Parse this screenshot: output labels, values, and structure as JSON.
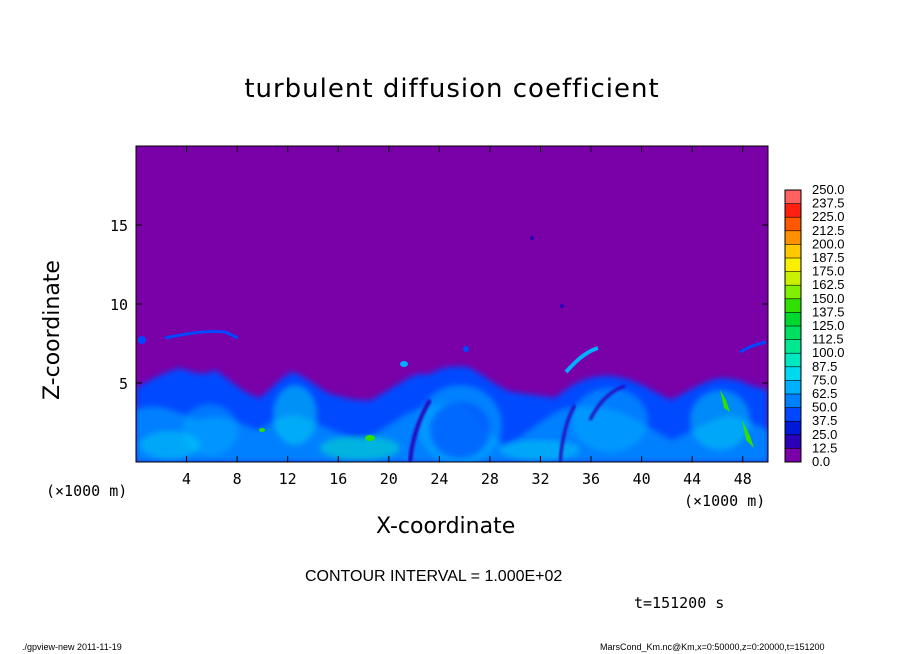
{
  "chart_data": {
    "type": "heatmap",
    "title": "turbulent diffusion coefficient",
    "xlabel": "X-coordinate",
    "ylabel": "Z-coordinate",
    "x_unit": "(×1000 m)",
    "y_unit": "(×1000 m)",
    "xlim": [
      0,
      50
    ],
    "ylim": [
      0,
      20
    ],
    "x_ticks": [
      4,
      8,
      12,
      16,
      20,
      24,
      28,
      32,
      36,
      40,
      44,
      48
    ],
    "y_ticks": [
      5,
      10,
      15
    ],
    "colorbar": {
      "levels": [
        "0.0",
        "12.5",
        "25.0",
        "37.5",
        "50.0",
        "62.5",
        "75.0",
        "87.5",
        "100.0",
        "112.5",
        "125.0",
        "137.5",
        "150.0",
        "162.5",
        "175.0",
        "187.5",
        "200.0",
        "212.5",
        "225.0",
        "237.5",
        "250.0"
      ],
      "colors": [
        "#7a00a8",
        "#2a00b8",
        "#0018d8",
        "#0048ff",
        "#0080ff",
        "#00b0ff",
        "#00d8f0",
        "#00e8c0",
        "#00e890",
        "#00e060",
        "#00d830",
        "#30e000",
        "#80f000",
        "#c8f000",
        "#f8f000",
        "#ffc800",
        "#ff9000",
        "#ff5800",
        "#ff2010",
        "#ff6060"
      ]
    },
    "background_value": 0.0
  },
  "contour_interval": "CONTOUR INTERVAL = 1.000E+02",
  "time_label": "t=151200 s",
  "footer_left": "./gpview-new   2011-11-19",
  "footer_right": "MarsCond_Km.nc@Km,x=0:50000,z=0:20000,t=151200"
}
